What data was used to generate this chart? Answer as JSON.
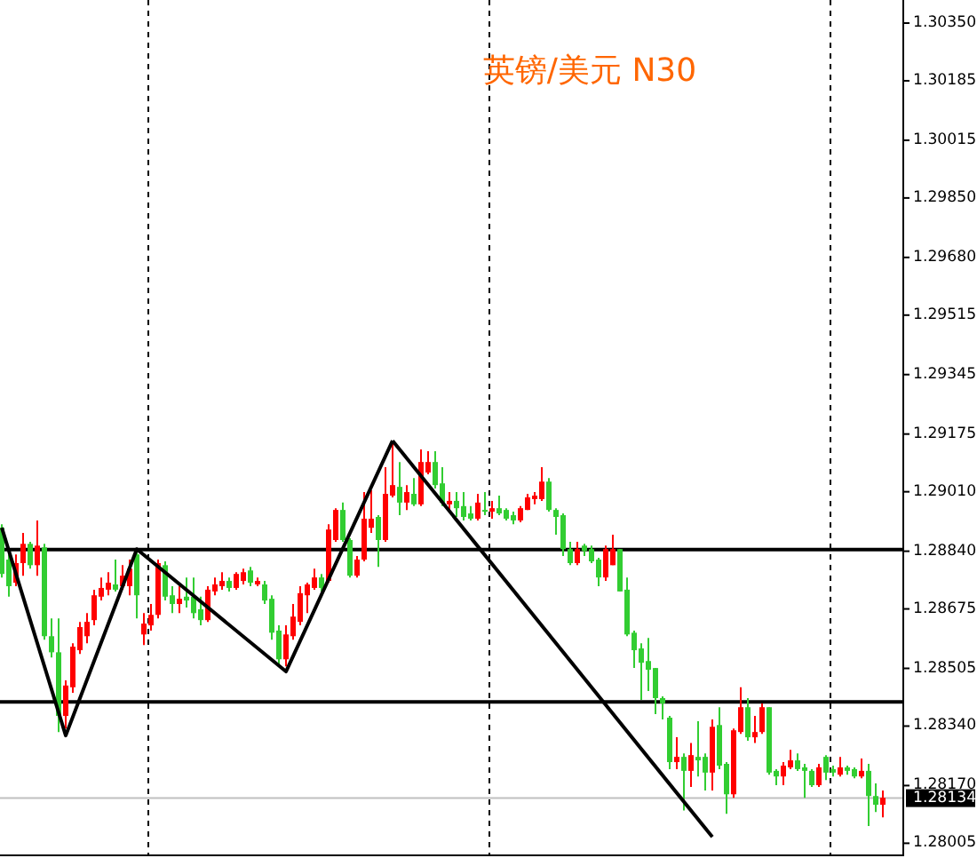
{
  "chart_data": {
    "type": "candlestick",
    "title": "英镑/美元 N30",
    "categories": [
      null,
      null,
      null,
      null,
      null,
      null,
      null,
      null,
      null,
      null,
      null,
      null,
      null,
      null,
      null,
      null,
      null,
      null,
      null,
      null,
      null,
      null,
      null,
      null,
      null,
      null,
      null,
      null,
      null,
      null,
      null,
      null,
      null,
      null,
      null,
      null,
      null,
      null,
      null,
      null,
      null,
      null,
      null,
      null,
      null,
      null,
      null,
      null,
      null,
      null,
      null,
      null,
      null,
      null,
      null,
      null,
      null,
      null,
      null,
      null,
      null,
      null,
      null,
      null,
      null,
      null,
      null,
      null,
      null,
      null,
      null,
      null,
      null,
      null,
      null,
      null,
      null,
      null,
      null,
      null,
      null,
      null,
      null,
      null,
      null,
      null,
      null,
      null,
      null,
      null,
      null,
      null,
      null,
      null,
      null,
      null,
      null,
      null,
      null,
      null,
      null,
      null,
      null,
      null,
      null,
      null,
      null,
      null,
      null,
      null,
      null,
      null,
      null,
      null,
      null,
      null,
      null,
      null,
      null,
      null,
      null,
      null,
      null,
      null,
      null
    ],
    "ohlc": [
      [
        1.28907,
        1.28917,
        1.28765,
        1.28775
      ],
      [
        1.28816,
        1.28831,
        1.2871,
        1.2874
      ],
      [
        1.2875,
        1.28831,
        1.2874,
        1.28806
      ],
      [
        1.28806,
        1.28892,
        1.2877,
        1.28861
      ],
      [
        1.28861,
        1.28867,
        1.2879,
        1.288
      ],
      [
        1.288,
        1.28928,
        1.2877,
        1.28856
      ],
      [
        1.28851,
        1.28861,
        1.28587,
        1.28597
      ],
      [
        1.28597,
        1.28648,
        1.28536,
        1.28551
      ],
      [
        1.28551,
        1.28648,
        1.28323,
        1.28369
      ],
      [
        1.28369,
        1.28471,
        1.28333,
        1.28456
      ],
      [
        1.28451,
        1.28577,
        1.28435,
        1.28567
      ],
      [
        1.28557,
        1.28638,
        1.28546,
        1.28623
      ],
      [
        1.28597,
        1.28663,
        1.28577,
        1.28638
      ],
      [
        1.28643,
        1.2873,
        1.28628,
        1.28714
      ],
      [
        1.2871,
        1.28765,
        1.28699,
        1.28735
      ],
      [
        1.2873,
        1.2878,
        1.28714,
        1.2875
      ],
      [
        1.28745,
        1.28816,
        1.28725,
        1.2873
      ],
      [
        1.2874,
        1.288,
        1.2873,
        1.2877
      ],
      [
        1.2874,
        1.28816,
        1.28714,
        1.2879
      ],
      [
        1.28831,
        1.28841,
        1.28648,
        1.28714
      ],
      [
        1.28602,
        1.28663,
        1.28572,
        1.28633
      ],
      [
        1.28628,
        1.28689,
        1.28613,
        1.28658
      ],
      [
        1.28658,
        1.28816,
        1.28648,
        1.28806
      ],
      [
        1.288,
        1.28811,
        1.28699,
        1.2871
      ],
      [
        1.28714,
        1.2874,
        1.28663,
        1.28689
      ],
      [
        1.28689,
        1.2874,
        1.28663,
        1.28704
      ],
      [
        1.2871,
        1.28765,
        1.28679,
        1.28699
      ],
      [
        1.2871,
        1.28765,
        1.28648,
        1.28663
      ],
      [
        1.28674,
        1.2871,
        1.28628,
        1.28643
      ],
      [
        1.28643,
        1.2874,
        1.28638,
        1.2873
      ],
      [
        1.28725,
        1.28765,
        1.28714,
        1.28745
      ],
      [
        1.2874,
        1.2878,
        1.2873,
        1.28755
      ],
      [
        1.28755,
        1.28765,
        1.28725,
        1.28735
      ],
      [
        1.28735,
        1.2878,
        1.2873,
        1.28775
      ],
      [
        1.28755,
        1.2879,
        1.28745,
        1.2878
      ],
      [
        1.28785,
        1.28795,
        1.2874,
        1.2875
      ],
      [
        1.28745,
        1.28765,
        1.2874,
        1.28755
      ],
      [
        1.28745,
        1.28755,
        1.28689,
        1.28699
      ],
      [
        1.28704,
        1.28714,
        1.28587,
        1.28607
      ],
      [
        1.28613,
        1.28628,
        1.28511,
        1.28531
      ],
      [
        1.28531,
        1.28628,
        1.28511,
        1.28602
      ],
      [
        1.28597,
        1.28689,
        1.28587,
        1.28653
      ],
      [
        1.28638,
        1.2874,
        1.28628,
        1.2872
      ],
      [
        1.28714,
        1.2875,
        1.28663,
        1.28745
      ],
      [
        1.28735,
        1.2879,
        1.2873,
        1.28765
      ],
      [
        1.28765,
        1.28775,
        1.28725,
        1.28735
      ],
      [
        1.28755,
        1.28917,
        1.2875,
        1.28902
      ],
      [
        1.28872,
        1.28963,
        1.28867,
        1.28958
      ],
      [
        1.28958,
        1.28979,
        1.28867,
        1.28872
      ],
      [
        1.28872,
        1.28877,
        1.28765,
        1.2877
      ],
      [
        1.2877,
        1.28826,
        1.28765,
        1.28816
      ],
      [
        1.28816,
        1.29009,
        1.28811,
        1.28933
      ],
      [
        1.28907,
        1.29014,
        1.28892,
        1.28933
      ],
      [
        1.28938,
        1.28943,
        1.28795,
        1.28872
      ],
      [
        1.28872,
        1.2908,
        1.28867,
        1.29004
      ],
      [
        1.28999,
        1.29156,
        1.28994,
        1.29029
      ],
      [
        1.29024,
        1.29095,
        1.28943,
        1.28979
      ],
      [
        1.28979,
        1.29029,
        1.28958,
        1.29009
      ],
      [
        1.29004,
        1.29049,
        1.28969,
        1.28974
      ],
      [
        1.28974,
        1.29131,
        1.28969,
        1.29095
      ],
      [
        1.29065,
        1.29126,
        1.2906,
        1.29095
      ],
      [
        1.29095,
        1.29126,
        1.29019,
        1.29029
      ],
      [
        1.29034,
        1.2908,
        1.28969,
        1.28979
      ],
      [
        1.28974,
        1.29009,
        1.28958,
        1.28984
      ],
      [
        1.28984,
        1.29009,
        1.28938,
        1.28963
      ],
      [
        1.28969,
        1.29009,
        1.28928,
        1.28938
      ],
      [
        1.28948,
        1.28969,
        1.28928,
        1.28933
      ],
      [
        1.28933,
        1.29004,
        1.28928,
        1.28979
      ],
      [
        1.28958,
        1.29009,
        1.28943,
        1.28953
      ],
      [
        1.28953,
        1.28984,
        1.28933,
        1.28963
      ],
      [
        1.28963,
        1.28999,
        1.28943,
        1.28948
      ],
      [
        1.28958,
        1.28963,
        1.28928,
        1.28933
      ],
      [
        1.28943,
        1.28953,
        1.28917,
        1.28928
      ],
      [
        1.28928,
        1.28969,
        1.28923,
        1.28963
      ],
      [
        1.28958,
        1.29004,
        1.28958,
        1.28994
      ],
      [
        1.28989,
        1.29009,
        1.28974,
        1.28999
      ],
      [
        1.28989,
        1.2908,
        1.28984,
        1.29039
      ],
      [
        1.29039,
        1.29049,
        1.28953,
        1.28958
      ],
      [
        1.28958,
        1.28963,
        1.28887,
        1.28938
      ],
      [
        1.28943,
        1.28948,
        1.28826,
        1.28846
      ],
      [
        1.28846,
        1.28867,
        1.288,
        1.28806
      ],
      [
        1.28806,
        1.28867,
        1.288,
        1.28846
      ],
      [
        1.28856,
        1.28861,
        1.28826,
        1.28841
      ],
      [
        1.28846,
        1.28856,
        1.28806,
        1.28811
      ],
      [
        1.28816,
        1.28821,
        1.2874,
        1.28765
      ],
      [
        1.28765,
        1.28856,
        1.28755,
        1.28846
      ],
      [
        1.288,
        1.28887,
        1.288,
        1.28846
      ],
      [
        1.28846,
        1.28846,
        1.28725,
        1.28725
      ],
      [
        1.2873,
        1.28765,
        1.28597,
        1.28602
      ],
      [
        1.28607,
        1.28613,
        1.28506,
        1.28557
      ],
      [
        1.28562,
        1.28577,
        1.28415,
        1.28521
      ],
      [
        1.28526,
        1.28592,
        1.2844,
        1.28501
      ],
      [
        1.28506,
        1.28506,
        1.28374,
        1.2842
      ],
      [
        1.2842,
        1.28425,
        1.28359,
        1.28405
      ],
      [
        1.28364,
        1.28369,
        1.28217,
        1.28237
      ],
      [
        1.28237,
        1.28308,
        1.28217,
        1.28252
      ],
      [
        1.28252,
        1.28262,
        1.28099,
        1.28212
      ],
      [
        1.28212,
        1.28292,
        1.28166,
        1.28257
      ],
      [
        1.28252,
        1.28354,
        1.28196,
        1.28242
      ],
      [
        1.28252,
        1.28262,
        1.28156,
        1.28207
      ],
      [
        1.28207,
        1.28359,
        1.28156,
        1.28338
      ],
      [
        1.28343,
        1.28394,
        1.28217,
        1.28227
      ],
      [
        1.28232,
        1.28237,
        1.28089,
        1.28145
      ],
      [
        1.28145,
        1.28333,
        1.28135,
        1.28328
      ],
      [
        1.28323,
        1.28451,
        1.28318,
        1.28394
      ],
      [
        1.28394,
        1.2842,
        1.28298,
        1.28308
      ],
      [
        1.28308,
        1.28369,
        1.28292,
        1.28323
      ],
      [
        1.28323,
        1.28405,
        1.28318,
        1.28394
      ],
      [
        1.28394,
        1.28394,
        1.28201,
        1.28207
      ],
      [
        1.28212,
        1.28217,
        1.28171,
        1.28196
      ],
      [
        1.28196,
        1.28237,
        1.28171,
        1.28227
      ],
      [
        1.28222,
        1.28272,
        1.28217,
        1.28242
      ],
      [
        1.28242,
        1.28262,
        1.28212,
        1.28217
      ],
      [
        1.28222,
        1.28232,
        1.28135,
        1.28212
      ],
      [
        1.28212,
        1.28217,
        1.28166,
        1.28171
      ],
      [
        1.28171,
        1.28232,
        1.28166,
        1.28222
      ],
      [
        1.28252,
        1.28257,
        1.28186,
        1.28207
      ],
      [
        1.28217,
        1.28227,
        1.28196,
        1.28207
      ],
      [
        1.28201,
        1.28252,
        1.28196,
        1.28222
      ],
      [
        1.28222,
        1.28227,
        1.28201,
        1.28212
      ],
      [
        1.28217,
        1.28222,
        1.28191,
        1.28196
      ],
      [
        1.28196,
        1.28247,
        1.28191,
        1.28212
      ],
      [
        1.28212,
        1.28232,
        1.28054,
        1.2814
      ],
      [
        1.2814,
        1.28176,
        1.28094,
        1.28115
      ],
      [
        1.28115,
        1.28156,
        1.28079,
        1.28135
      ]
    ],
    "colors": [
      "#32cd32",
      "#32cd32",
      "#ff0000",
      "#ff0000",
      "#32cd32",
      "#ff0000",
      "#32cd32",
      "#32cd32",
      "#32cd32",
      "#ff0000",
      "#ff0000",
      "#ff0000",
      "#ff0000",
      "#ff0000",
      "#ff0000",
      "#ff0000",
      "#32cd32",
      "#ff0000",
      "#ff0000",
      "#32cd32",
      "#ff0000",
      "#ff0000",
      "#ff0000",
      "#32cd32",
      "#32cd32",
      "#ff0000",
      "#32cd32",
      "#32cd32",
      "#32cd32",
      "#ff0000",
      "#ff0000",
      "#ff0000",
      "#32cd32",
      "#ff0000",
      "#ff0000",
      "#32cd32",
      "#ff0000",
      "#32cd32",
      "#32cd32",
      "#32cd32",
      "#ff0000",
      "#ff0000",
      "#ff0000",
      "#ff0000",
      "#ff0000",
      "#32cd32",
      "#ff0000",
      "#ff0000",
      "#32cd32",
      "#32cd32",
      "#ff0000",
      "#ff0000",
      "#ff0000",
      "#32cd32",
      "#ff0000",
      "#ff0000",
      "#32cd32",
      "#ff0000",
      "#32cd32",
      "#ff0000",
      "#ff0000",
      "#32cd32",
      "#32cd32",
      "#ff0000",
      "#32cd32",
      "#32cd32",
      "#32cd32",
      "#ff0000",
      "#32cd32",
      "#ff0000",
      "#32cd32",
      "#32cd32",
      "#32cd32",
      "#ff0000",
      "#ff0000",
      "#ff0000",
      "#ff0000",
      "#32cd32",
      "#32cd32",
      "#32cd32",
      "#32cd32",
      "#ff0000",
      "#32cd32",
      "#32cd32",
      "#32cd32",
      "#ff0000",
      "#ff0000",
      "#32cd32",
      "#32cd32",
      "#32cd32",
      "#32cd32",
      "#32cd32",
      "#32cd32",
      "#32cd32",
      "#32cd32",
      "#ff0000",
      "#32cd32",
      "#ff0000",
      "#32cd32",
      "#32cd32",
      "#ff0000",
      "#32cd32",
      "#32cd32",
      "#ff0000",
      "#ff0000",
      "#32cd32",
      "#ff0000",
      "#ff0000",
      "#32cd32",
      "#32cd32",
      "#ff0000",
      "#ff0000",
      "#32cd32",
      "#32cd32",
      "#32cd32",
      "#ff0000",
      "#32cd32",
      "#32cd32",
      "#ff0000",
      "#32cd32",
      "#32cd32",
      "#ff0000",
      "#32cd32",
      "#32cd32",
      "#ff0000"
    ],
    "series": [
      {
        "type": "line",
        "values": [
          1.28907,
          null,
          null,
          null,
          null,
          null,
          null,
          null,
          null,
          1.28313,
          null,
          null,
          null,
          null,
          null,
          null,
          null,
          null,
          null,
          1.28846,
          null,
          null,
          null,
          null,
          null,
          null,
          null,
          null,
          null,
          null,
          null,
          null,
          null,
          null,
          null,
          null,
          null,
          null,
          null,
          null,
          1.28496,
          null,
          null,
          null,
          null,
          null,
          null,
          null,
          null,
          null,
          null,
          null,
          null,
          null,
          null,
          1.29156,
          null,
          null,
          null,
          null,
          null,
          null,
          null,
          null,
          null,
          null,
          null,
          null,
          null,
          null,
          null,
          null,
          null,
          null,
          null,
          null,
          null,
          null,
          null,
          null,
          null,
          null,
          null,
          null,
          null,
          null,
          null,
          null,
          null,
          null,
          null,
          null,
          null,
          null,
          null,
          null,
          null,
          null,
          null,
          null,
          null,
          null,
          null,
          null,
          null,
          null,
          null,
          null,
          null,
          null,
          null,
          null,
          null,
          null,
          null,
          null,
          null,
          null,
          null,
          null,
          null,
          null,
          null,
          null,
          null
        ],
        "color": "#000000"
      },
      {
        "type": "line",
        "values": [
          null,
          null,
          null,
          null,
          null,
          null,
          null,
          null,
          null,
          null,
          null,
          null,
          null,
          null,
          null,
          null,
          null,
          null,
          null,
          null,
          null,
          null,
          null,
          null,
          null,
          null,
          null,
          null,
          null,
          null,
          null,
          null,
          null,
          null,
          null,
          null,
          null,
          null,
          null,
          null,
          null,
          null,
          null,
          null,
          null,
          null,
          null,
          null,
          null,
          null,
          null,
          null,
          null,
          null,
          null,
          1.29156,
          null,
          null,
          null,
          null,
          null,
          null,
          null,
          null,
          null,
          null,
          null,
          null,
          null,
          null,
          null,
          null,
          null,
          null,
          null,
          null,
          null,
          null,
          null,
          null,
          null,
          null,
          null,
          null,
          null,
          null,
          null,
          null,
          null,
          null,
          null,
          null,
          null,
          null,
          null,
          null,
          null,
          null,
          null,
          null,
          1.28023,
          null,
          null,
          null,
          null,
          null,
          null,
          null,
          null,
          null,
          null,
          null,
          null,
          null,
          null,
          null,
          null,
          null,
          null,
          null,
          null,
          null,
          null,
          null,
          null
        ],
        "color": "#000000"
      }
    ],
    "ylim": [
      1.27973,
      1.30416
    ],
    "yticks": [
      {
        "value": 1.3035,
        "label": "1.30350"
      },
      {
        "value": 1.30185,
        "label": "1.30185"
      },
      {
        "value": 1.30015,
        "label": "1.30015"
      },
      {
        "value": 1.2985,
        "label": "1.29850"
      },
      {
        "value": 1.2968,
        "label": "1.29680"
      },
      {
        "value": 1.29515,
        "label": "1.29515"
      },
      {
        "value": 1.29345,
        "label": "1.29345"
      },
      {
        "value": 1.29175,
        "label": "1.29175"
      },
      {
        "value": 1.2901,
        "label": "1.29010"
      },
      {
        "value": 1.2884,
        "label": "1.28840"
      },
      {
        "value": 1.28675,
        "label": "1.28675"
      },
      {
        "value": 1.28505,
        "label": "1.28505"
      },
      {
        "value": 1.2834,
        "label": "1.28340"
      },
      {
        "value": 1.2817,
        "label": "1.28170"
      },
      {
        "value": 1.28005,
        "label": "1.28005"
      }
    ],
    "ref_lines": [
      {
        "axis": "y",
        "value": 1.28845,
        "color": "#000000"
      },
      {
        "axis": "y",
        "value": 1.28409,
        "color": "#000000"
      },
      {
        "axis": "y",
        "value": 1.28134,
        "label": "1.28134",
        "color": "#c0c0c0"
      }
    ]
  }
}
